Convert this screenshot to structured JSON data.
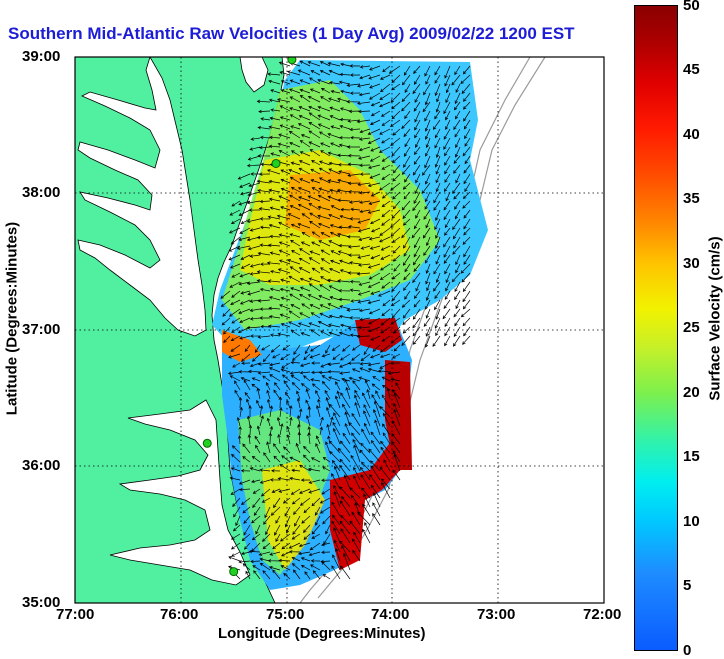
{
  "title": "Southern Mid-Atlantic Raw Velocities (1 Day Avg) 2009/02/22 1200 EST",
  "axes": {
    "xlabel": "Longitude (Degrees:Minutes)",
    "ylabel": "Latitude (Degrees:Minutes)",
    "xticks": [
      "77:00",
      "76:00",
      "75:00",
      "74:00",
      "73:00",
      "72:00"
    ],
    "yticks": [
      "39:00",
      "38:00",
      "37:00",
      "36:00",
      "35:00"
    ]
  },
  "colorbar": {
    "label": "Surface Velocity (cm/s)",
    "ticks": [
      "50",
      "45",
      "40",
      "35",
      "30",
      "25",
      "20",
      "15",
      "10",
      "5",
      "0"
    ],
    "range": [
      0,
      50
    ]
  },
  "colors": {
    "land": "#50f0a0",
    "water": "#ffffff",
    "title": "#1d1dd6",
    "vectors": "#000000",
    "stations": "#22d022"
  },
  "stations": [
    {
      "lon": -74.95,
      "lat": 38.98
    },
    {
      "lon": -75.1,
      "lat": 38.22
    },
    {
      "lon": -75.75,
      "lat": 36.17
    },
    {
      "lon": -75.5,
      "lat": 35.23
    }
  ]
}
